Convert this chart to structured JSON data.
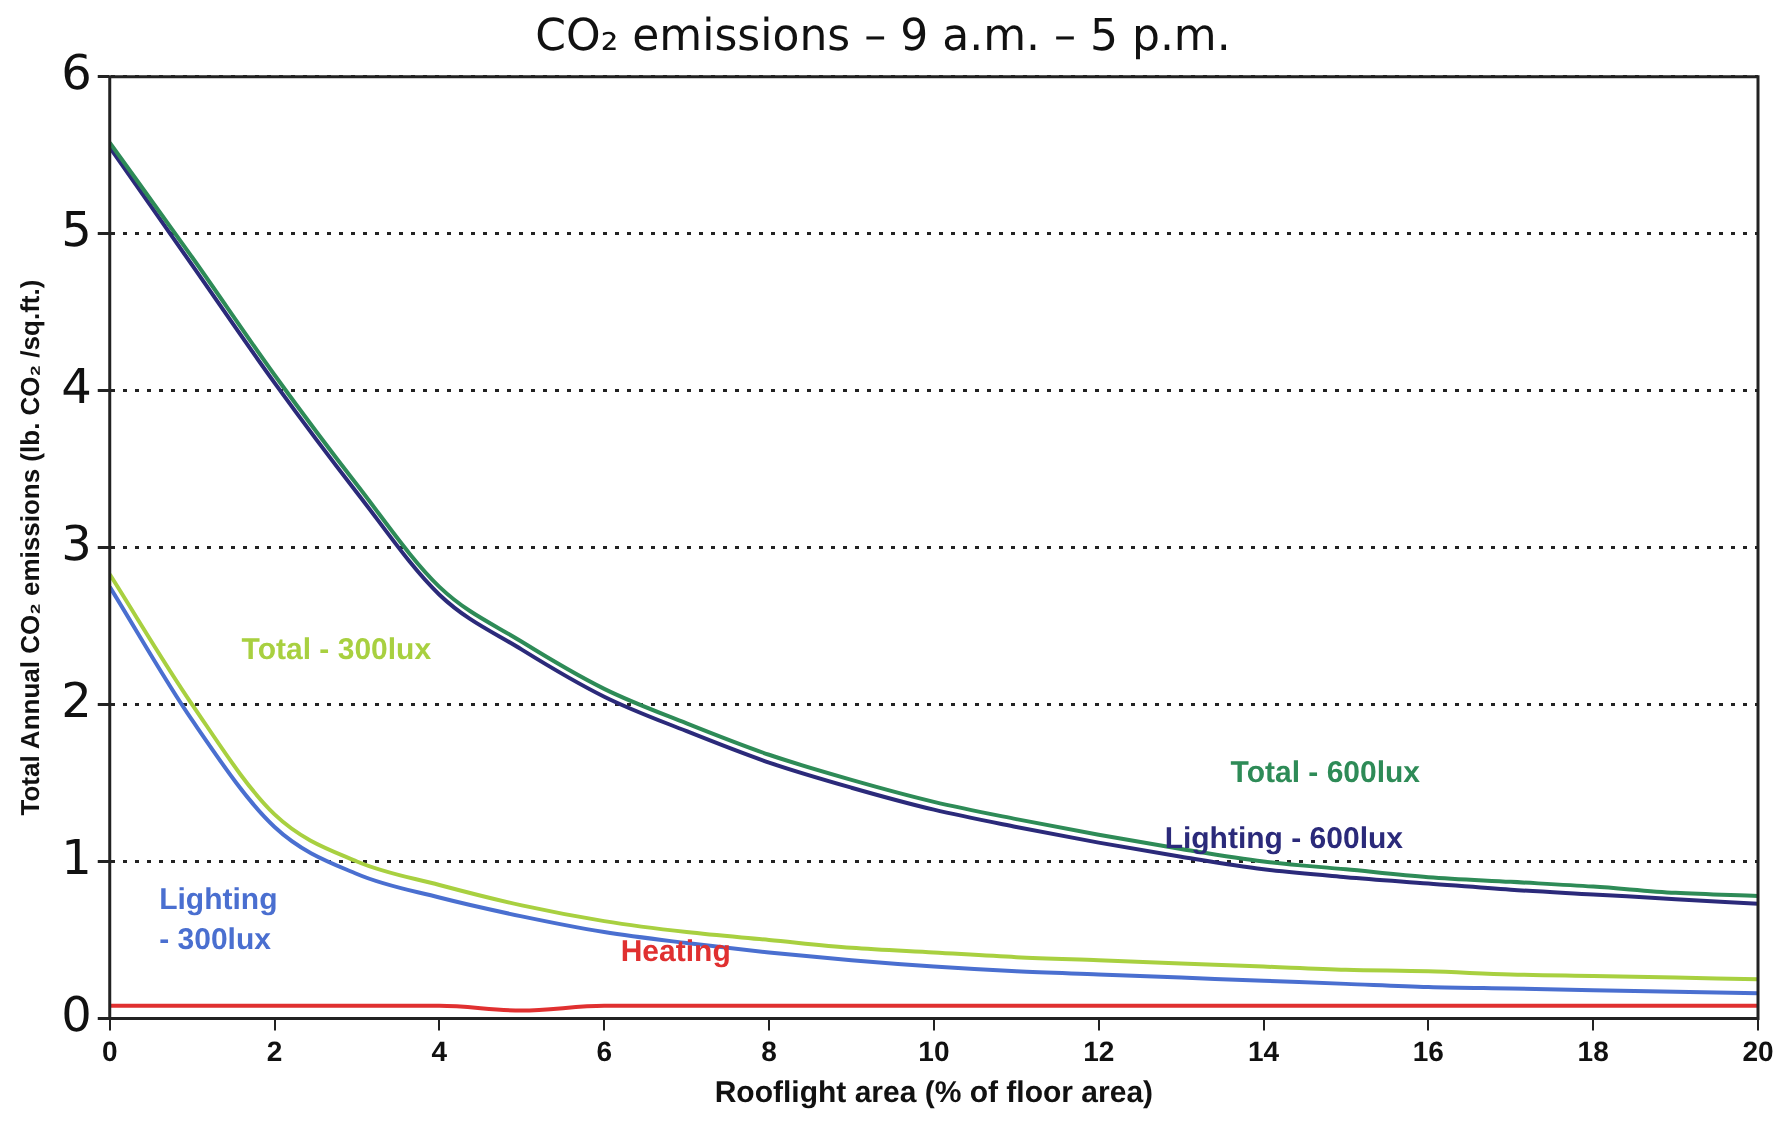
{
  "chart_data": {
    "type": "line",
    "title": "CO₂ emissions – 9 a.m. – 5 p.m.",
    "xlabel": "Rooflight area (% of floor area)",
    "ylabel": "Total Annual CO₂ emissions (lb. CO₂ /sq.ft.)",
    "x": [
      0,
      1,
      2,
      3,
      4,
      5,
      6,
      7,
      8,
      9,
      10,
      11,
      12,
      13,
      14,
      15,
      16,
      17,
      18,
      19,
      20
    ],
    "series": [
      {
        "name": "Total - 600lux",
        "color": "#2e8b57",
        "values": [
          5.58,
          4.85,
          4.1,
          3.4,
          2.75,
          2.4,
          2.1,
          1.88,
          1.68,
          1.52,
          1.38,
          1.27,
          1.17,
          1.08,
          1.0,
          0.95,
          0.9,
          0.87,
          0.84,
          0.8,
          0.78
        ]
      },
      {
        "name": "Lighting - 600lux",
        "color": "#2b2a7a",
        "values": [
          5.55,
          4.8,
          4.05,
          3.35,
          2.7,
          2.35,
          2.05,
          1.83,
          1.63,
          1.47,
          1.33,
          1.22,
          1.12,
          1.03,
          0.95,
          0.9,
          0.86,
          0.82,
          0.79,
          0.76,
          0.73
        ]
      },
      {
        "name": "Total - 300lux",
        "color": "#a8d040",
        "values": [
          2.83,
          2.0,
          1.3,
          1.0,
          0.85,
          0.72,
          0.62,
          0.55,
          0.5,
          0.45,
          0.42,
          0.39,
          0.37,
          0.35,
          0.33,
          0.31,
          0.3,
          0.28,
          0.27,
          0.26,
          0.25
        ]
      },
      {
        "name": "Lighting - 300lux",
        "color": "#4a6fd0",
        "values": [
          2.75,
          1.9,
          1.22,
          0.92,
          0.77,
          0.65,
          0.55,
          0.48,
          0.42,
          0.37,
          0.33,
          0.3,
          0.28,
          0.26,
          0.24,
          0.22,
          0.2,
          0.19,
          0.18,
          0.17,
          0.16
        ]
      },
      {
        "name": "Heating",
        "color": "#e03030",
        "x": [
          0,
          4,
          5,
          6,
          10,
          20
        ],
        "values": [
          0.08,
          0.08,
          0.05,
          0.08,
          0.08,
          0.08
        ]
      }
    ],
    "xlim": [
      0,
      20
    ],
    "xticks": [
      0,
      2,
      4,
      6,
      8,
      10,
      12,
      14,
      16,
      18,
      20
    ],
    "ylim": [
      0,
      6
    ],
    "yticks": [
      0,
      1,
      2,
      3,
      4,
      5,
      6
    ],
    "grid": "y",
    "legend": false,
    "marker": "none",
    "line_style": "solid"
  }
}
